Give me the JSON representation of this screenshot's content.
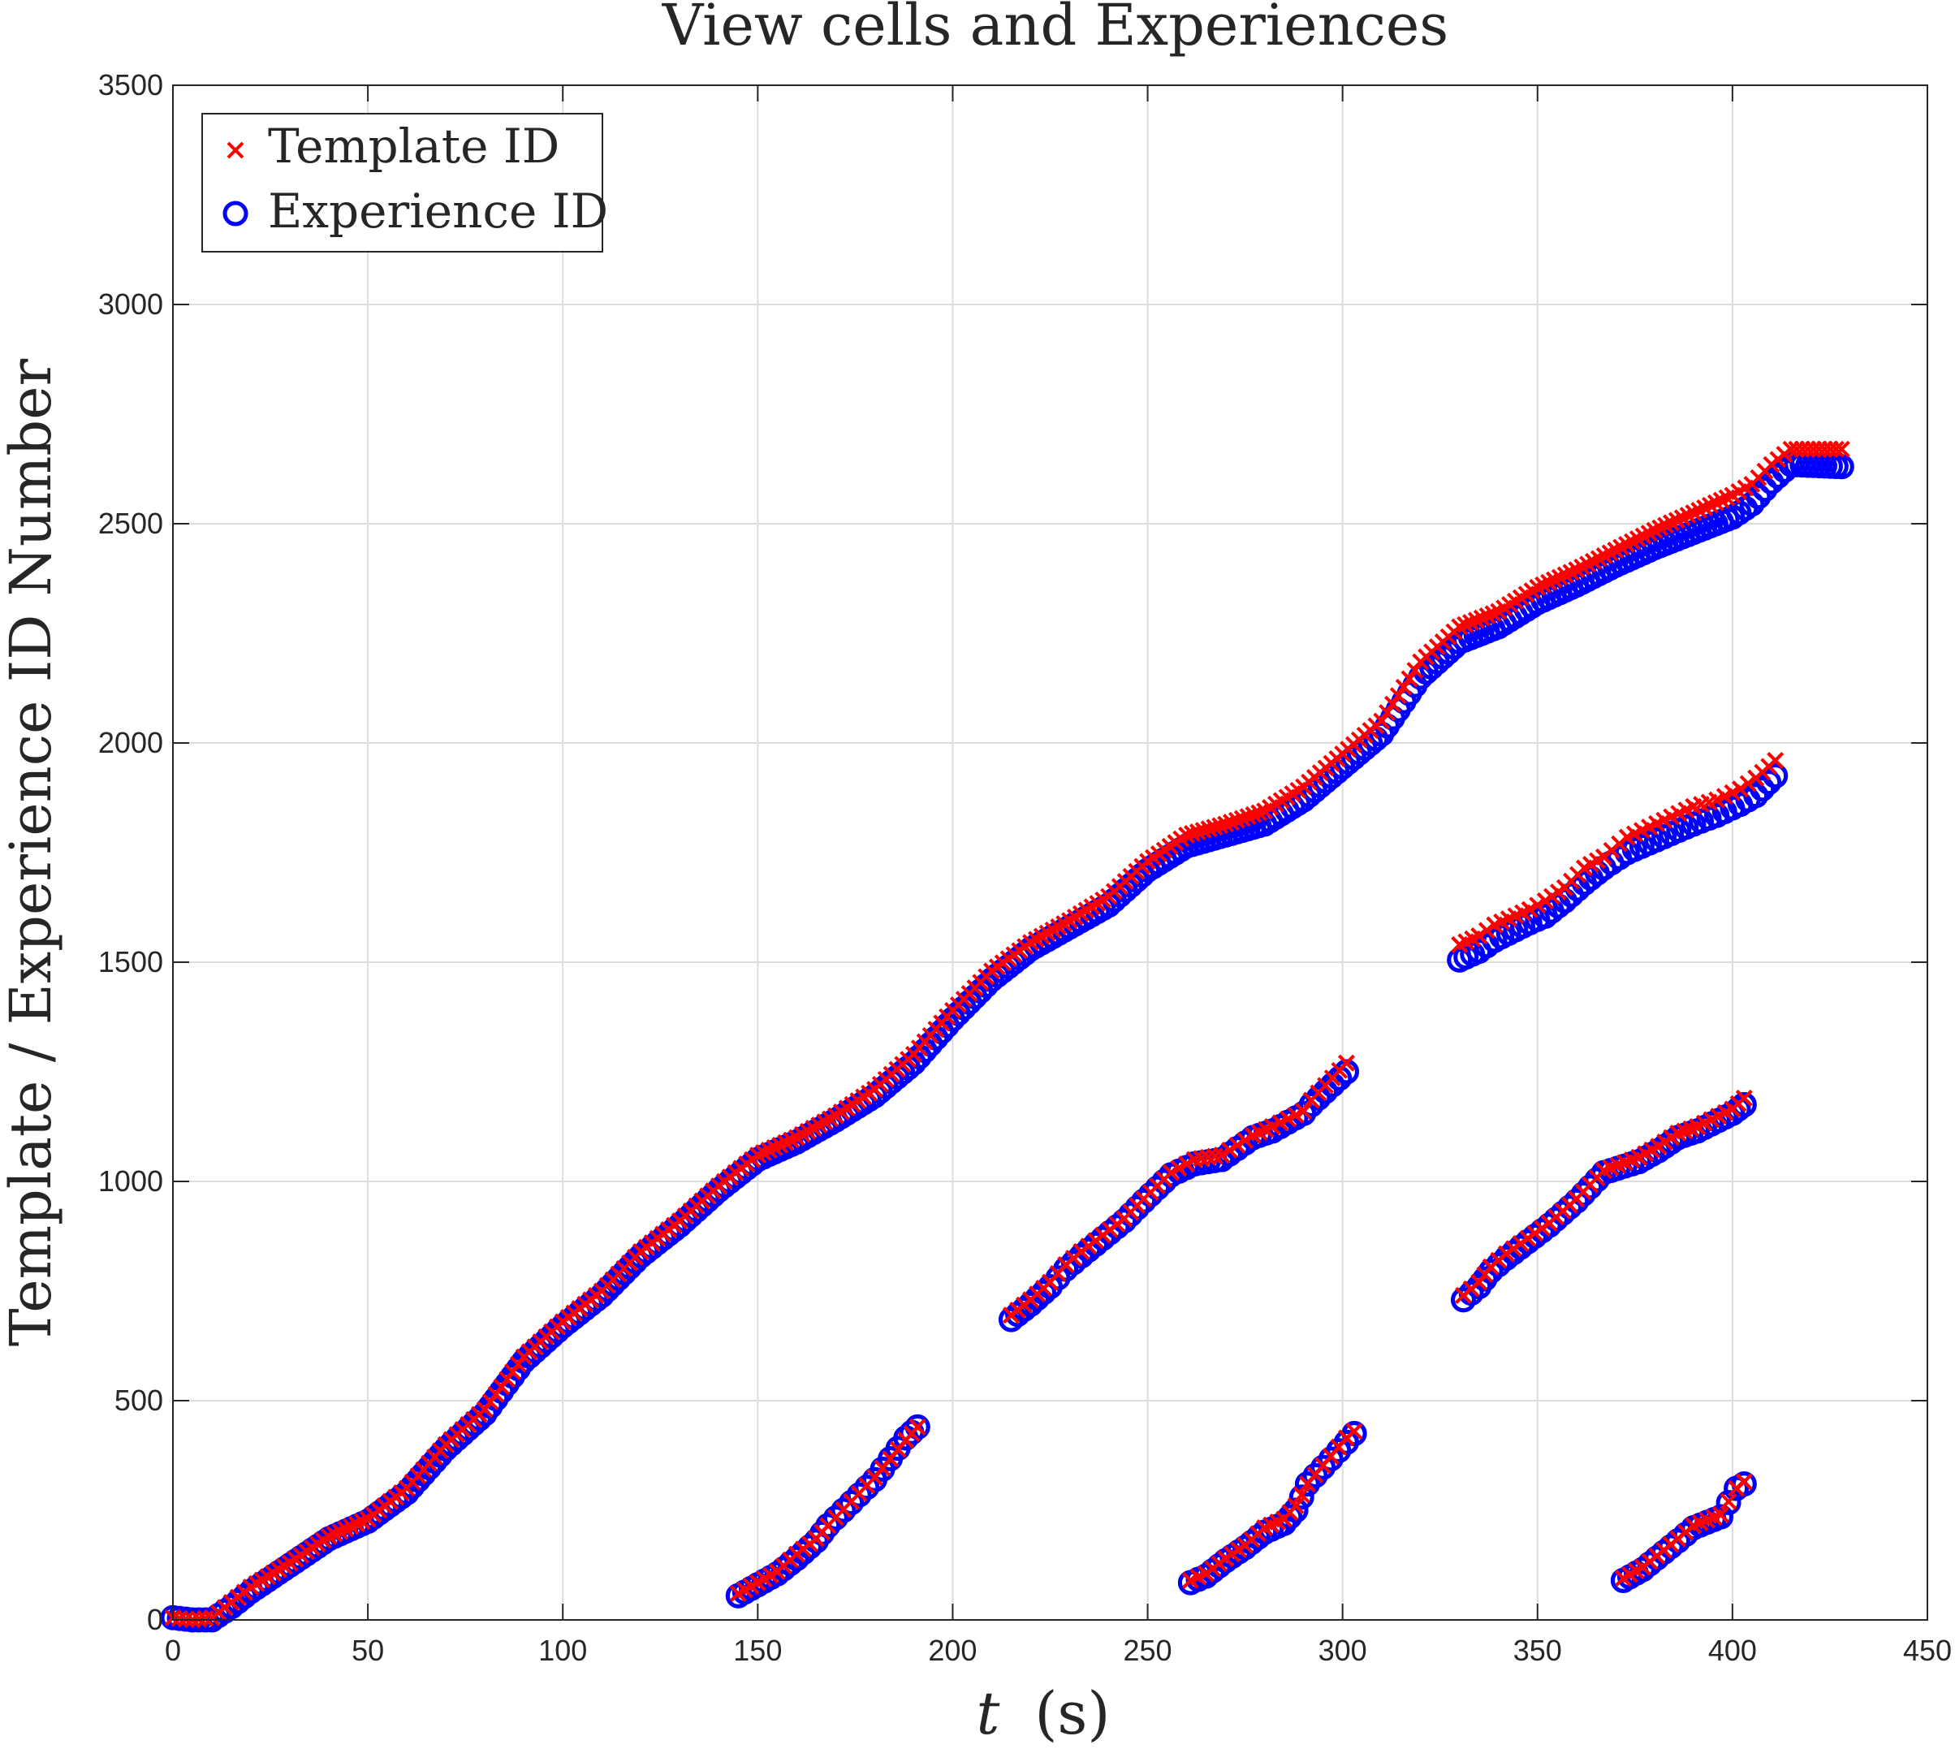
{
  "colors": {
    "template": "#ff0000",
    "experience": "#0000ff",
    "grid": "#dcdcdc",
    "axis": "#262626"
  },
  "chart_data": {
    "type": "scatter",
    "title": "View cells and Experiences",
    "xlabel": "t (s)",
    "xlabel_var": "t",
    "xlabel_unit": "(s)",
    "ylabel": "Template / Experience ID Number",
    "xlim": [
      0,
      450
    ],
    "ylim": [
      0,
      3500
    ],
    "xticks": [
      0,
      50,
      100,
      150,
      200,
      250,
      300,
      350,
      400,
      450
    ],
    "yticks": [
      0,
      500,
      1000,
      1500,
      2000,
      2500,
      3000,
      3500
    ],
    "grid": true,
    "legend_position": "top-left",
    "series": [
      {
        "name": "Template ID",
        "marker": "x",
        "color": "#ff0000",
        "main_trend": [
          [
            0,
            5
          ],
          [
            5,
            0
          ],
          [
            10,
            5
          ],
          [
            15,
            40
          ],
          [
            20,
            75
          ],
          [
            30,
            130
          ],
          [
            40,
            190
          ],
          [
            50,
            230
          ],
          [
            60,
            300
          ],
          [
            70,
            400
          ],
          [
            80,
            480
          ],
          [
            90,
            600
          ],
          [
            100,
            680
          ],
          [
            110,
            750
          ],
          [
            120,
            840
          ],
          [
            130,
            910
          ],
          [
            140,
            990
          ],
          [
            150,
            1060
          ],
          [
            160,
            1100
          ],
          [
            170,
            1150
          ],
          [
            180,
            1210
          ],
          [
            190,
            1290
          ],
          [
            200,
            1390
          ],
          [
            210,
            1480
          ],
          [
            220,
            1545
          ],
          [
            230,
            1595
          ],
          [
            240,
            1650
          ],
          [
            250,
            1730
          ],
          [
            260,
            1790
          ],
          [
            270,
            1815
          ],
          [
            280,
            1845
          ],
          [
            290,
            1900
          ],
          [
            300,
            1975
          ],
          [
            310,
            2050
          ],
          [
            320,
            2185
          ],
          [
            330,
            2265
          ],
          [
            340,
            2300
          ],
          [
            350,
            2355
          ],
          [
            360,
            2395
          ],
          [
            370,
            2440
          ],
          [
            380,
            2485
          ],
          [
            390,
            2525
          ],
          [
            400,
            2565
          ],
          [
            405,
            2590
          ],
          [
            410,
            2635
          ],
          [
            415,
            2670
          ],
          [
            428,
            2670
          ]
        ],
        "clusters": [
          [
            [
              145,
              60
            ],
            [
              150,
              85
            ],
            [
              155,
              110
            ],
            [
              160,
              150
            ],
            [
              165,
              185
            ],
            [
              168,
              215
            ],
            [
              180,
              325
            ],
            [
              188,
              410
            ],
            [
              191,
              440
            ]
          ],
          [
            [
              215,
              695
            ],
            [
              220,
              730
            ],
            [
              225,
              770
            ],
            [
              229,
              810
            ],
            [
              233,
              840
            ],
            [
              244,
              915
            ],
            [
              249,
              960
            ],
            [
              256,
              1020
            ],
            [
              262,
              1050
            ],
            [
              269,
              1060
            ],
            [
              277,
              1105
            ],
            [
              282,
              1125
            ],
            [
              290,
              1160
            ],
            [
              292,
              1185
            ],
            [
              301,
              1270
            ]
          ],
          [
            [
              261,
              90
            ],
            [
              265,
              105
            ],
            [
              270,
              140
            ],
            [
              275,
              170
            ],
            [
              280,
              210
            ],
            [
              285,
              230
            ],
            [
              288,
              260
            ],
            [
              291,
              310
            ],
            [
              301,
              415
            ],
            [
              303,
              430
            ]
          ],
          [
            [
              331,
              740
            ],
            [
              335,
              770
            ],
            [
              338,
              805
            ],
            [
              342,
              835
            ],
            [
              353,
              905
            ],
            [
              360,
              960
            ],
            [
              367,
              1025
            ],
            [
              376,
              1055
            ],
            [
              381,
              1080
            ],
            [
              386,
              1110
            ],
            [
              391,
              1125
            ],
            [
              400,
              1165
            ],
            [
              403,
              1190
            ]
          ],
          [
            [
              330,
              1540
            ],
            [
              335,
              1560
            ],
            [
              339,
              1585
            ],
            [
              348,
              1620
            ],
            [
              352,
              1640
            ],
            [
              357,
              1670
            ],
            [
              362,
              1715
            ],
            [
              367,
              1740
            ],
            [
              373,
              1785
            ],
            [
              390,
              1855
            ],
            [
              396,
              1870
            ],
            [
              402,
              1895
            ],
            [
              406,
              1920
            ],
            [
              411,
              1960
            ]
          ],
          [
            [
              372,
              95
            ],
            [
              377,
              120
            ],
            [
              386,
              185
            ],
            [
              390,
              215
            ],
            [
              397,
              240
            ],
            [
              401,
              300
            ],
            [
              403,
              315
            ]
          ]
        ]
      },
      {
        "name": "Experience ID",
        "marker": "o",
        "color": "#0000ff",
        "main_trend": [
          [
            0,
            5
          ],
          [
            5,
            0
          ],
          [
            10,
            0
          ],
          [
            15,
            30
          ],
          [
            20,
            65
          ],
          [
            30,
            125
          ],
          [
            40,
            185
          ],
          [
            50,
            225
          ],
          [
            60,
            290
          ],
          [
            70,
            390
          ],
          [
            80,
            470
          ],
          [
            90,
            590
          ],
          [
            100,
            670
          ],
          [
            110,
            740
          ],
          [
            120,
            830
          ],
          [
            130,
            900
          ],
          [
            140,
            980
          ],
          [
            150,
            1050
          ],
          [
            160,
            1090
          ],
          [
            170,
            1140
          ],
          [
            180,
            1195
          ],
          [
            190,
            1270
          ],
          [
            200,
            1370
          ],
          [
            210,
            1460
          ],
          [
            220,
            1530
          ],
          [
            230,
            1580
          ],
          [
            240,
            1630
          ],
          [
            250,
            1710
          ],
          [
            260,
            1765
          ],
          [
            270,
            1790
          ],
          [
            280,
            1815
          ],
          [
            290,
            1870
          ],
          [
            300,
            1945
          ],
          [
            310,
            2020
          ],
          [
            320,
            2150
          ],
          [
            330,
            2230
          ],
          [
            340,
            2265
          ],
          [
            350,
            2320
          ],
          [
            360,
            2360
          ],
          [
            370,
            2405
          ],
          [
            380,
            2445
          ],
          [
            390,
            2480
          ],
          [
            400,
            2515
          ],
          [
            405,
            2545
          ],
          [
            410,
            2595
          ],
          [
            415,
            2635
          ],
          [
            428,
            2630
          ]
        ],
        "clusters": [
          [
            [
              145,
              55
            ],
            [
              150,
              80
            ],
            [
              155,
              105
            ],
            [
              160,
              140
            ],
            [
              165,
              180
            ],
            [
              168,
              215
            ],
            [
              180,
              320
            ],
            [
              188,
              415
            ],
            [
              191,
              440
            ]
          ],
          [
            [
              215,
              685
            ],
            [
              220,
              720
            ],
            [
              225,
              760
            ],
            [
              229,
              800
            ],
            [
              233,
              830
            ],
            [
              244,
              910
            ],
            [
              249,
              955
            ],
            [
              256,
              1015
            ],
            [
              262,
              1040
            ],
            [
              269,
              1050
            ],
            [
              277,
              1100
            ],
            [
              282,
              1115
            ],
            [
              290,
              1155
            ],
            [
              292,
              1175
            ],
            [
              301,
              1250
            ]
          ],
          [
            [
              261,
              85
            ],
            [
              265,
              100
            ],
            [
              270,
              135
            ],
            [
              275,
              165
            ],
            [
              280,
              200
            ],
            [
              285,
              220
            ],
            [
              288,
              250
            ],
            [
              291,
              310
            ],
            [
              301,
              405
            ],
            [
              303,
              425
            ]
          ],
          [
            [
              331,
              730
            ],
            [
              335,
              760
            ],
            [
              338,
              795
            ],
            [
              342,
              825
            ],
            [
              353,
              900
            ],
            [
              360,
              955
            ],
            [
              367,
              1020
            ],
            [
              376,
              1045
            ],
            [
              381,
              1070
            ],
            [
              386,
              1100
            ],
            [
              391,
              1115
            ],
            [
              400,
              1155
            ],
            [
              403,
              1175
            ]
          ],
          [
            [
              330,
              1505
            ],
            [
              335,
              1525
            ],
            [
              339,
              1550
            ],
            [
              348,
              1590
            ],
            [
              352,
              1605
            ],
            [
              357,
              1640
            ],
            [
              362,
              1680
            ],
            [
              367,
              1715
            ],
            [
              373,
              1750
            ],
            [
              390,
              1815
            ],
            [
              396,
              1835
            ],
            [
              402,
              1860
            ],
            [
              406,
              1880
            ],
            [
              411,
              1925
            ]
          ],
          [
            [
              372,
              90
            ],
            [
              377,
              115
            ],
            [
              386,
              180
            ],
            [
              390,
              210
            ],
            [
              397,
              235
            ],
            [
              401,
              300
            ],
            [
              403,
              310
            ]
          ]
        ]
      }
    ]
  }
}
